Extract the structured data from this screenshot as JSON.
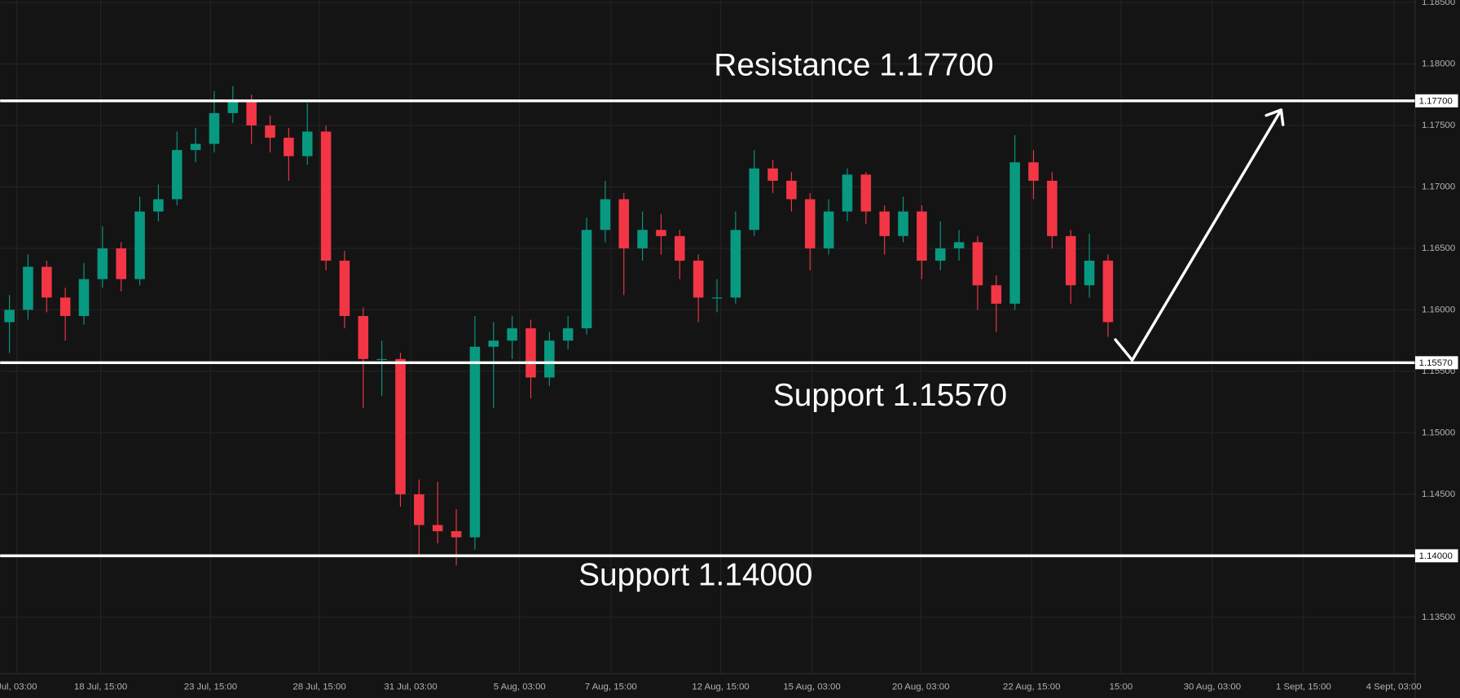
{
  "chart_data": {
    "type": "candlestick",
    "up_color": "#089981",
    "down_color": "#f23645",
    "grid": true,
    "xlim": [
      -0.5,
      75.5
    ],
    "ylim": [
      1.1304,
      1.1852
    ],
    "yticks": [
      {
        "value": 1.135,
        "label": "1.13500"
      },
      {
        "value": 1.14,
        "label": "1.14000"
      },
      {
        "value": 1.145,
        "label": "1.14500"
      },
      {
        "value": 1.15,
        "label": "1.15000"
      },
      {
        "value": 1.155,
        "label": "1.15500"
      },
      {
        "value": 1.16,
        "label": "1.16000"
      },
      {
        "value": 1.165,
        "label": "1.16500"
      },
      {
        "value": 1.17,
        "label": "1.17000"
      },
      {
        "value": 1.175,
        "label": "1.17500"
      },
      {
        "value": 1.18,
        "label": "1.18000"
      },
      {
        "value": 1.185,
        "label": "1.18500"
      }
    ],
    "xticks": [
      {
        "value": 0.4,
        "label": "Jul, 03:00"
      },
      {
        "value": 4.9,
        "label": "18 Jul, 15:00"
      },
      {
        "value": 10.8,
        "label": "23 Jul, 15:00"
      },
      {
        "value": 16.65,
        "label": "28 Jul, 15:00"
      },
      {
        "value": 21.55,
        "label": "31 Jul, 03:00"
      },
      {
        "value": 27.4,
        "label": "5 Aug, 03:00"
      },
      {
        "value": 32.3,
        "label": "7 Aug, 15:00"
      },
      {
        "value": 38.2,
        "label": "12 Aug, 15:00"
      },
      {
        "value": 43.1,
        "label": "15 Aug, 03:00"
      },
      {
        "value": 48.95,
        "label": "20 Aug, 03:00"
      },
      {
        "value": 54.9,
        "label": "22 Aug, 15:00"
      },
      {
        "value": 59.7,
        "label": "15:00"
      },
      {
        "value": 64.6,
        "label": "30 Aug, 03:00"
      },
      {
        "value": 69.5,
        "label": "1 Sept, 15:00"
      },
      {
        "value": 74.35,
        "label": "4 Sept, 03:00"
      }
    ],
    "open": [
      1.159,
      1.16,
      1.1635,
      1.161,
      1.1595,
      1.1625,
      1.165,
      1.1625,
      1.168,
      1.169,
      1.173,
      1.1735,
      1.176,
      1.177,
      1.175,
      1.174,
      1.1725,
      1.1745,
      1.164,
      1.1595,
      1.156,
      1.156,
      1.145,
      1.1425,
      1.142,
      1.1415,
      1.157,
      1.1575,
      1.1585,
      1.1545,
      1.1575,
      1.1585,
      1.1665,
      1.169,
      1.165,
      1.1665,
      1.166,
      1.164,
      1.161,
      1.161,
      1.1665,
      1.1715,
      1.1705,
      1.169,
      1.165,
      1.168,
      1.171,
      1.168,
      1.166,
      1.168,
      1.164,
      1.165,
      1.1655,
      1.162,
      1.1605,
      1.172,
      1.1705,
      1.166,
      1.162,
      1.164
    ],
    "high": [
      1.1612,
      1.1645,
      1.164,
      1.1618,
      1.1638,
      1.1668,
      1.1655,
      1.1692,
      1.1702,
      1.1745,
      1.1748,
      1.1778,
      1.1782,
      1.1775,
      1.1758,
      1.1748,
      1.1768,
      1.175,
      1.1648,
      1.1602,
      1.1575,
      1.1565,
      1.1462,
      1.146,
      1.1438,
      1.1595,
      1.159,
      1.1595,
      1.1592,
      1.1582,
      1.1595,
      1.1675,
      1.1705,
      1.1695,
      1.168,
      1.1678,
      1.1665,
      1.1645,
      1.1625,
      1.168,
      1.173,
      1.1722,
      1.1712,
      1.1695,
      1.169,
      1.1715,
      1.1712,
      1.1685,
      1.1692,
      1.1685,
      1.1672,
      1.1665,
      1.166,
      1.1628,
      1.1742,
      1.173,
      1.1712,
      1.1665,
      1.1662,
      1.1645
    ],
    "low": [
      1.1565,
      1.1592,
      1.1598,
      1.1575,
      1.1588,
      1.1618,
      1.1615,
      1.162,
      1.1672,
      1.1685,
      1.172,
      1.1728,
      1.1752,
      1.1735,
      1.1728,
      1.1705,
      1.1718,
      1.1632,
      1.1585,
      1.152,
      1.153,
      1.144,
      1.14,
      1.141,
      1.1392,
      1.1405,
      1.152,
      1.156,
      1.1528,
      1.1538,
      1.1568,
      1.158,
      1.1655,
      1.1612,
      1.164,
      1.1645,
      1.1625,
      1.159,
      1.1598,
      1.1605,
      1.166,
      1.1695,
      1.168,
      1.1632,
      1.1645,
      1.1672,
      1.167,
      1.1645,
      1.1655,
      1.1625,
      1.1632,
      1.164,
      1.16,
      1.1582,
      1.16,
      1.169,
      1.165,
      1.1605,
      1.161,
      1.1578
    ],
    "close": [
      1.16,
      1.1635,
      1.161,
      1.1595,
      1.1625,
      1.165,
      1.1625,
      1.168,
      1.169,
      1.173,
      1.1735,
      1.176,
      1.177,
      1.175,
      1.174,
      1.1725,
      1.1745,
      1.164,
      1.1595,
      1.156,
      1.156,
      1.145,
      1.1425,
      1.142,
      1.1415,
      1.157,
      1.1575,
      1.1585,
      1.1545,
      1.1575,
      1.1585,
      1.1665,
      1.169,
      1.165,
      1.1665,
      1.166,
      1.164,
      1.161,
      1.161,
      1.1665,
      1.1715,
      1.1705,
      1.169,
      1.165,
      1.168,
      1.171,
      1.168,
      1.166,
      1.168,
      1.164,
      1.165,
      1.1655,
      1.162,
      1.1605,
      1.172,
      1.1705,
      1.166,
      1.162,
      1.164,
      1.159
    ],
    "levels": [
      {
        "value": 1.177,
        "label": "1.17700",
        "annotation": "Resistance 1.17700"
      },
      {
        "value": 1.1557,
        "label": "1.15570",
        "annotation": "Support 1.15570"
      },
      {
        "value": 1.14,
        "label": "1.14000",
        "annotation": "Support 1.14000"
      }
    ]
  }
}
